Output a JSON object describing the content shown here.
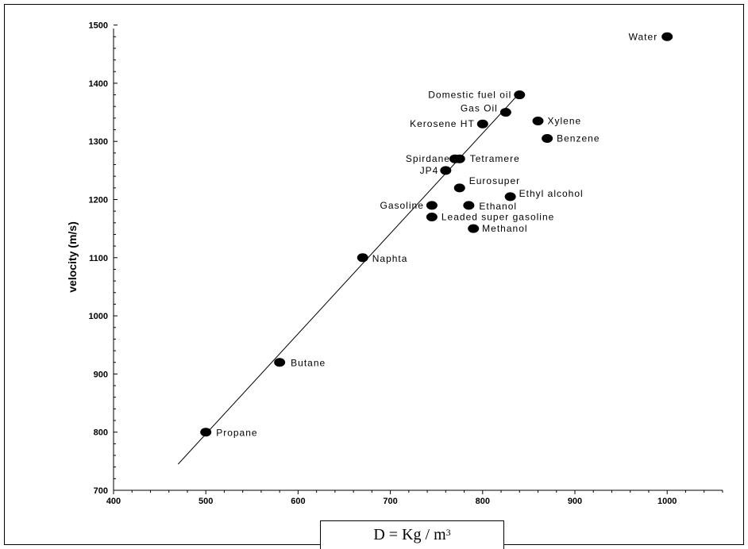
{
  "chart_data": {
    "type": "scatter",
    "title": "",
    "xlabel": "D = Kg / m",
    "xlabel_superscript": "3",
    "ylabel": "velocity (m/s)",
    "xlim": [
      400,
      1000
    ],
    "ylim": [
      700,
      1500
    ],
    "xticks": [
      400,
      500,
      600,
      700,
      800,
      900,
      1000
    ],
    "yticks": [
      700,
      800,
      900,
      1000,
      1100,
      1200,
      1300,
      1400,
      1500
    ],
    "grid": false,
    "legend": "none",
    "marker_color": "#000000",
    "points": [
      {
        "label": "Water",
        "x": 1000,
        "y": 1480
      },
      {
        "label": "Domestic fuel  oil",
        "x": 840,
        "y": 1380
      },
      {
        "label": "Gas Oil",
        "x": 825,
        "y": 1350
      },
      {
        "label": "Kerosene HT",
        "x": 800,
        "y": 1330
      },
      {
        "label": "Xylene",
        "x": 860,
        "y": 1335
      },
      {
        "label": "Benzene",
        "x": 870,
        "y": 1305
      },
      {
        "label": "Spirdane",
        "x": 770,
        "y": 1270
      },
      {
        "label": "Tetramere",
        "x": 775,
        "y": 1270
      },
      {
        "label": "JP4",
        "x": 760,
        "y": 1250
      },
      {
        "label": "Eurosuper",
        "x": 775,
        "y": 1220
      },
      {
        "label": "Ethyl alcohol",
        "x": 830,
        "y": 1205
      },
      {
        "label": "Gasoline",
        "x": 745,
        "y": 1190
      },
      {
        "label": "Ethanol",
        "x": 785,
        "y": 1190
      },
      {
        "label": "Leaded super gasoline",
        "x": 745,
        "y": 1170
      },
      {
        "label": "Methanol",
        "x": 790,
        "y": 1150
      },
      {
        "label": "Naphta",
        "x": 670,
        "y": 1100
      },
      {
        "label": "Butane",
        "x": 580,
        "y": 920
      },
      {
        "label": "Propane",
        "x": 500,
        "y": 800
      }
    ],
    "trend_line": {
      "x": [
        470,
        840
      ],
      "y": [
        745,
        1383
      ]
    }
  }
}
